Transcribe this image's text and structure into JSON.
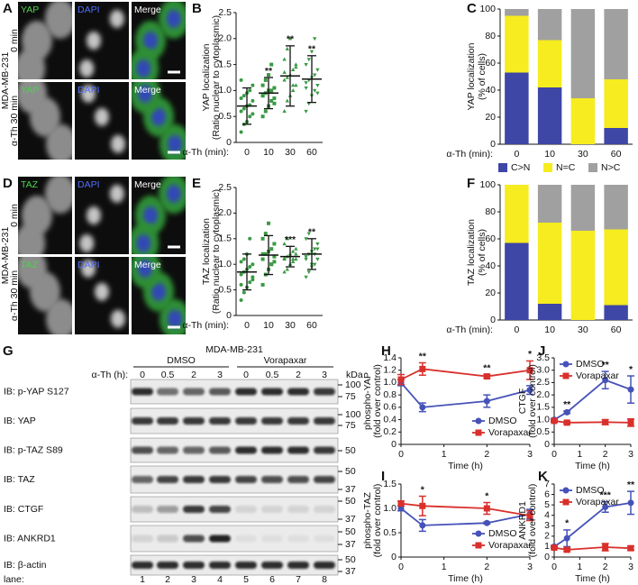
{
  "microscopy_yap": {
    "panel": "A",
    "cell_line": "MDA-MB-231",
    "columns": [
      "YAP",
      "DAPI",
      "Merge"
    ],
    "rows": [
      "0 min",
      "α-Th 30 min"
    ]
  },
  "microscopy_taz": {
    "panel": "D",
    "cell_line": "MDA-MB-231",
    "columns": [
      "TAZ",
      "DAPI",
      "Merge"
    ],
    "rows": [
      "0 min",
      "α-Th 30 min"
    ]
  },
  "blot": {
    "panel": "G",
    "cell_line": "MDA-MB-231",
    "groups": [
      "DMSO",
      "Vorapaxar"
    ],
    "time_label": "α-Th (h):",
    "times": [
      "0",
      "0.5",
      "2",
      "3",
      "0",
      "0.5",
      "2",
      "3"
    ],
    "kda_label": "kDa",
    "rows": [
      {
        "label": "IB: p-YAP S127",
        "markers": [
          100,
          75
        ]
      },
      {
        "label": "IB: YAP",
        "markers": [
          100,
          75
        ]
      },
      {
        "label": "IB: p-TAZ S89",
        "markers": [
          50
        ]
      },
      {
        "label": "IB: TAZ",
        "markers": [
          50,
          37
        ]
      },
      {
        "label": "IB: CTGF",
        "markers": [
          50,
          37
        ]
      },
      {
        "label": "IB: ANKRD1",
        "markers": [
          50,
          37
        ]
      },
      {
        "label": "IB: β-actin",
        "markers": [
          50,
          37
        ]
      }
    ],
    "lane_label": "lane:",
    "lanes": [
      1,
      2,
      3,
      4,
      5,
      6,
      7,
      8
    ]
  },
  "chart_data": [
    {
      "type": "dotplot",
      "panel": "B",
      "y_label": [
        "YAP localization",
        "(Ratio nuclear to cytoplasmic)"
      ],
      "x_label": "α-Th (min):",
      "categories": [
        "0",
        "10",
        "30",
        "60"
      ],
      "color": "#3a9a44",
      "points": [
        [
          0.2,
          0.35,
          0.4,
          0.5,
          0.55,
          0.6,
          0.65,
          0.7,
          0.72,
          0.8,
          0.85,
          0.9,
          0.95,
          1.0,
          1.1,
          1.2
        ],
        [
          0.5,
          0.6,
          0.7,
          0.8,
          0.85,
          0.9,
          0.95,
          1.0,
          1.0,
          1.05,
          1.1,
          1.2,
          1.3,
          1.5,
          0.75,
          0.9
        ],
        [
          0.6,
          0.8,
          0.9,
          1.0,
          1.1,
          1.2,
          1.25,
          1.3,
          1.4,
          1.5,
          1.6,
          1.8,
          2.0,
          1.1,
          1.45,
          1.35
        ],
        [
          0.6,
          0.75,
          0.9,
          1.0,
          1.1,
          1.15,
          1.2,
          1.25,
          1.3,
          1.4,
          1.5,
          1.6,
          1.75,
          2.0,
          0.95,
          1.05
        ]
      ],
      "means": [
        0.7,
        0.95,
        1.28,
        1.22
      ],
      "sd": [
        0.35,
        0.3,
        0.58,
        0.45
      ],
      "significance": [
        null,
        "**",
        "**",
        "**"
      ],
      "ylim": [
        0,
        2.5
      ],
      "yticks": [
        0,
        0.5,
        {
          "value": 1,
          "label": "1.0"
        },
        1.5,
        {
          "value": 2,
          "label": "2.0"
        },
        2.5
      ]
    },
    {
      "type": "stacked_bar",
      "panel": "C",
      "y_label": [
        "YAP localization",
        "(% of cells)"
      ],
      "x_label": "α-Th (min):",
      "categories": [
        "0",
        "10",
        "30",
        "60"
      ],
      "series": [
        {
          "name": "C>N",
          "color": "#3e46a6",
          "values": [
            53,
            42,
            0,
            12
          ]
        },
        {
          "name": "N=C",
          "color": "#f6ec1f",
          "values": [
            42,
            35,
            34,
            36
          ]
        },
        {
          "name": "N>C",
          "color": "#a0a0a0",
          "values": [
            5,
            23,
            66,
            52
          ]
        }
      ],
      "ylim": [
        0,
        100
      ],
      "yticks": [
        0,
        20,
        40,
        60,
        80,
        100
      ],
      "legend": "bottom"
    },
    {
      "type": "dotplot",
      "panel": "E",
      "y_label": [
        "TAZ localization",
        "(Ratio nuclear to cytoplasmic)"
      ],
      "x_label": "α-Th (min):",
      "categories": [
        "0",
        "10",
        "30",
        "60"
      ],
      "color": "#3a9a44",
      "points": [
        [
          0.3,
          0.45,
          0.55,
          0.65,
          0.7,
          0.8,
          0.85,
          0.9,
          0.95,
          1.0,
          1.05,
          1.1,
          1.2,
          1.5,
          0.75,
          0.6
        ],
        [
          0.6,
          0.8,
          0.9,
          1.0,
          1.05,
          1.1,
          1.2,
          1.25,
          1.3,
          1.4,
          1.5,
          1.6,
          1.8,
          1.0,
          1.15,
          1.2
        ],
        [
          0.85,
          0.9,
          1.0,
          1.05,
          1.1,
          1.12,
          1.15,
          1.2,
          1.25,
          1.3,
          1.4,
          1.5,
          1.0,
          1.1,
          1.2,
          1.1
        ],
        [
          0.75,
          0.85,
          0.95,
          1.0,
          1.1,
          1.15,
          1.2,
          1.25,
          1.3,
          1.4,
          1.5,
          1.6,
          1.0,
          1.2,
          1.3,
          1.1
        ]
      ],
      "means": [
        0.85,
        1.18,
        1.15,
        1.2
      ],
      "sd": [
        0.35,
        0.38,
        0.2,
        0.3
      ],
      "significance": [
        null,
        null,
        "***",
        "**"
      ],
      "ylim": [
        0,
        2.5
      ],
      "yticks": [
        0,
        0.5,
        {
          "value": 1,
          "label": "1.0"
        },
        1.5,
        {
          "value": 2,
          "label": "2.0"
        },
        2.5
      ]
    },
    {
      "type": "stacked_bar",
      "panel": "F",
      "y_label": [
        "TAZ localization",
        "(% of cells)"
      ],
      "x_label": "α-Th (min):",
      "categories": [
        "0",
        "10",
        "30",
        "60"
      ],
      "series": [
        {
          "color": "#3e46a6",
          "values": [
            57,
            12,
            0,
            11
          ]
        },
        {
          "color": "#f6ec1f",
          "values": [
            43,
            60,
            66,
            56
          ]
        },
        {
          "color": "#a0a0a0",
          "values": [
            0,
            28,
            34,
            33
          ]
        }
      ],
      "ylim": [
        0,
        100
      ],
      "yticks": [
        0,
        20,
        40,
        60,
        80,
        100
      ]
    },
    {
      "type": "line",
      "panel": "H",
      "y_label": [
        "phospho-YAP",
        "(fold over control)"
      ],
      "x_label": "Time (h)",
      "x": [
        0,
        0.5,
        2,
        3
      ],
      "series": [
        {
          "name": "DMSO",
          "color": "#4552b8",
          "marker": "circle",
          "values": [
            1.0,
            0.6,
            0.7,
            0.88
          ],
          "errors": [
            0.05,
            0.07,
            0.1,
            0.07
          ]
        },
        {
          "name": "Vorapaxar",
          "color": "#d9302c",
          "marker": "square",
          "values": [
            1.05,
            1.22,
            1.1,
            1.2
          ],
          "errors": [
            0.08,
            0.1,
            0.03,
            0.15
          ]
        }
      ],
      "significance": [
        null,
        "**",
        "**",
        "*"
      ],
      "xlim": [
        0,
        3
      ],
      "xticks": [
        0,
        1,
        2,
        3
      ],
      "ylim": [
        0,
        1.4
      ],
      "yticks": [
        0,
        0.2,
        0.4,
        0.6,
        0.8,
        {
          "value": 1,
          "label": "1.0"
        },
        1.2,
        1.4
      ],
      "legend": "lower right"
    },
    {
      "type": "line",
      "panel": "I",
      "y_label": [
        "phospho-TAZ",
        "(fold over control)"
      ],
      "x_label": "Time (h)",
      "x": [
        0,
        0.5,
        2,
        3
      ],
      "series": [
        {
          "name": "DMSO",
          "color": "#4552b8",
          "marker": "circle",
          "values": [
            1.0,
            0.65,
            0.7,
            0.88
          ],
          "errors": [
            0.05,
            0.12,
            0.02,
            0.1
          ]
        },
        {
          "name": "Vorapaxar",
          "color": "#d9302c",
          "marker": "square",
          "values": [
            1.1,
            1.05,
            1.0,
            0.85
          ],
          "errors": [
            0.05,
            0.2,
            0.12,
            0.1
          ]
        }
      ],
      "significance": [
        null,
        "*",
        "*",
        null
      ],
      "xlim": [
        0,
        3
      ],
      "xticks": [
        0,
        1,
        2,
        3
      ],
      "ylim": [
        0,
        1.5
      ],
      "yticks": [
        0,
        0.5,
        {
          "value": 1,
          "label": "1.0"
        },
        1.5
      ],
      "legend": "lower right"
    },
    {
      "type": "line",
      "panel": "J",
      "y_label": [
        "CTGF",
        "(fold over control)"
      ],
      "x_label": "Time (h)",
      "x": [
        0,
        0.5,
        2,
        3
      ],
      "series": [
        {
          "name": "DMSO",
          "color": "#4552b8",
          "marker": "circle",
          "values": [
            1.0,
            1.3,
            2.6,
            2.22
          ],
          "errors": [
            0.05,
            0.05,
            0.35,
            0.55
          ]
        },
        {
          "name": "Vorapaxar",
          "color": "#d9302c",
          "marker": "square",
          "values": [
            0.95,
            0.88,
            0.9,
            0.88
          ],
          "errors": [
            0.05,
            0.05,
            0.1,
            0.15
          ]
        }
      ],
      "significance": [
        null,
        "**",
        "**",
        "*"
      ],
      "xlim": [
        0,
        3
      ],
      "xticks": [
        0,
        1,
        2,
        3
      ],
      "ylim": [
        0,
        3.5
      ],
      "yticks": [
        0,
        0.5,
        {
          "value": 1,
          "label": "1.0"
        },
        1.5,
        {
          "value": 2,
          "label": "2.0"
        },
        2.5,
        {
          "value": 3,
          "label": "3.0"
        },
        3.5
      ],
      "legend": "upper left"
    },
    {
      "type": "line",
      "panel": "K",
      "y_label": [
        "ANKRD1",
        "(fold over control)"
      ],
      "x_label": "Time (h)",
      "x": [
        0,
        0.5,
        2,
        3
      ],
      "series": [
        {
          "name": "DMSO",
          "color": "#4552b8",
          "marker": "circle",
          "values": [
            1.0,
            1.8,
            4.8,
            5.2
          ],
          "errors": [
            0.1,
            0.8,
            0.5,
            1.1
          ]
        },
        {
          "name": "Vorapaxar",
          "color": "#d9302c",
          "marker": "square",
          "values": [
            0.9,
            0.7,
            0.95,
            0.85
          ],
          "errors": [
            0.1,
            0.15,
            0.35,
            0.2
          ]
        }
      ],
      "significance": [
        null,
        "*",
        "***",
        "**"
      ],
      "xlim": [
        0,
        3
      ],
      "xticks": [
        0,
        1,
        2,
        3
      ],
      "ylim": [
        0,
        7
      ],
      "yticks": [
        0,
        1,
        2,
        3,
        4,
        5,
        6,
        7
      ],
      "legend": "upper left"
    }
  ]
}
